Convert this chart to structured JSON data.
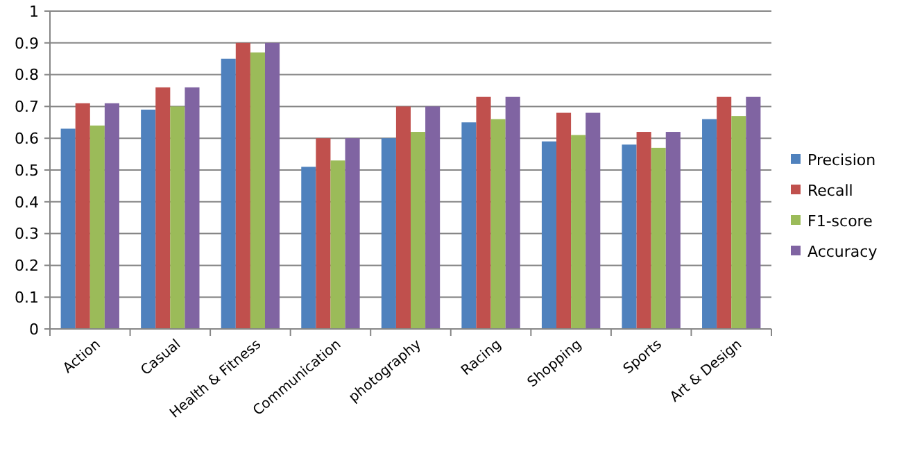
{
  "chart_data": {
    "type": "bar",
    "categories": [
      "Action",
      "Casual",
      "Health & Fitness",
      "Communication",
      "photography",
      "Racing",
      "Shopping",
      "Sports",
      "Art & Design"
    ],
    "series": [
      {
        "name": "Precision",
        "color": "#4f81bd",
        "values": [
          0.63,
          0.69,
          0.85,
          0.51,
          0.6,
          0.65,
          0.59,
          0.58,
          0.66
        ]
      },
      {
        "name": "Recall",
        "color": "#c0504d",
        "values": [
          0.71,
          0.76,
          0.9,
          0.6,
          0.7,
          0.73,
          0.68,
          0.62,
          0.73
        ]
      },
      {
        "name": "F1-score",
        "color": "#9bbb59",
        "values": [
          0.64,
          0.7,
          0.87,
          0.53,
          0.62,
          0.66,
          0.61,
          0.57,
          0.67
        ]
      },
      {
        "name": "Accuracy",
        "color": "#8064a2",
        "values": [
          0.71,
          0.76,
          0.9,
          0.6,
          0.7,
          0.73,
          0.68,
          0.62,
          0.73
        ]
      }
    ],
    "ylim": [
      0,
      1
    ],
    "yticks": [
      0,
      0.1,
      0.2,
      0.3,
      0.4,
      0.5,
      0.6,
      0.7,
      0.8,
      0.9,
      1
    ],
    "grid": "y",
    "legend": "right"
  }
}
